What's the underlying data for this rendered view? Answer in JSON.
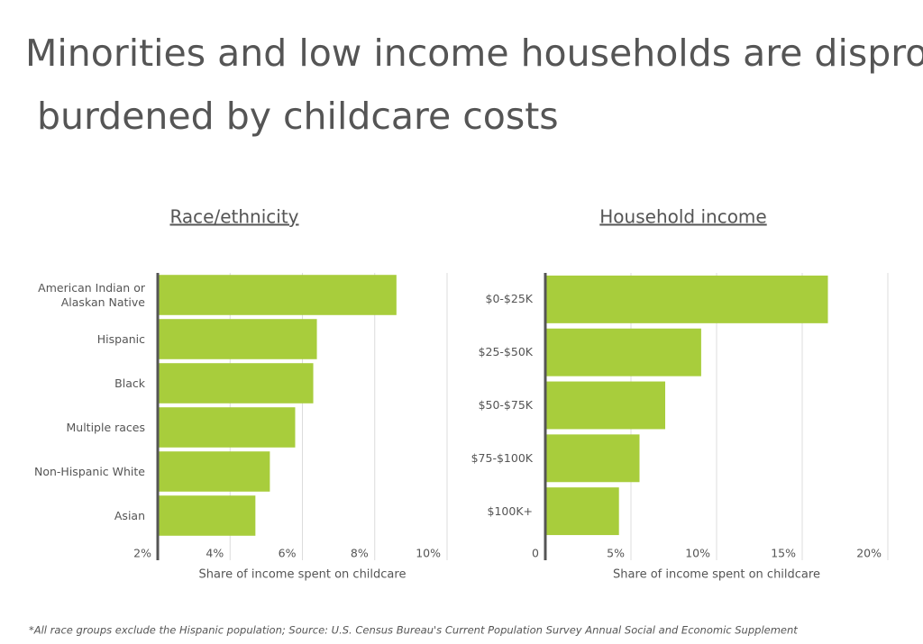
{
  "title": "Minorities and low income households are disproportionately burdened by childcare costs",
  "chart_data": [
    {
      "type": "bar",
      "orientation": "horizontal",
      "title": "Race/ethnicity",
      "categories": [
        "American Indian or Alaskan Native",
        "Hispanic",
        "Black",
        "Multiple races",
        "Non-Hispanic White",
        "Asian"
      ],
      "values": [
        8.6,
        6.4,
        6.3,
        5.8,
        5.1,
        4.7
      ],
      "color": "#a8cd3c",
      "xlim": [
        2,
        10
      ],
      "xticks": [
        {
          "value": 2,
          "label": "2%"
        },
        {
          "value": 4,
          "label": "4%"
        },
        {
          "value": 6,
          "label": "6%"
        },
        {
          "value": 8,
          "label": "8%"
        },
        {
          "value": 10,
          "label": "10%"
        }
      ],
      "x_label": "Share of income spent on childcare",
      "grid": true
    },
    {
      "type": "bar",
      "orientation": "horizontal",
      "title": "Household income",
      "categories": [
        "$0-$25K",
        "$25-$50K",
        "$50-$75K",
        "$75-$100K",
        "$100K+"
      ],
      "values": [
        16.5,
        9.1,
        7.0,
        5.5,
        4.3
      ],
      "color": "#a8cd3c",
      "xlim": [
        0,
        20
      ],
      "xticks": [
        0,
        {
          "value": 5,
          "label": "5%"
        },
        {
          "value": 10,
          "label": "10%"
        },
        {
          "value": 15,
          "label": "15%"
        },
        {
          "value": 20,
          "label": "20%"
        }
      ],
      "x_label": "Share of income spent on childcare",
      "grid": true
    }
  ],
  "footnote": "*All race groups exclude the Hispanic population;  Source: U.S. Census Bureau's Current Population Survey Annual Social and Economic Supplement"
}
